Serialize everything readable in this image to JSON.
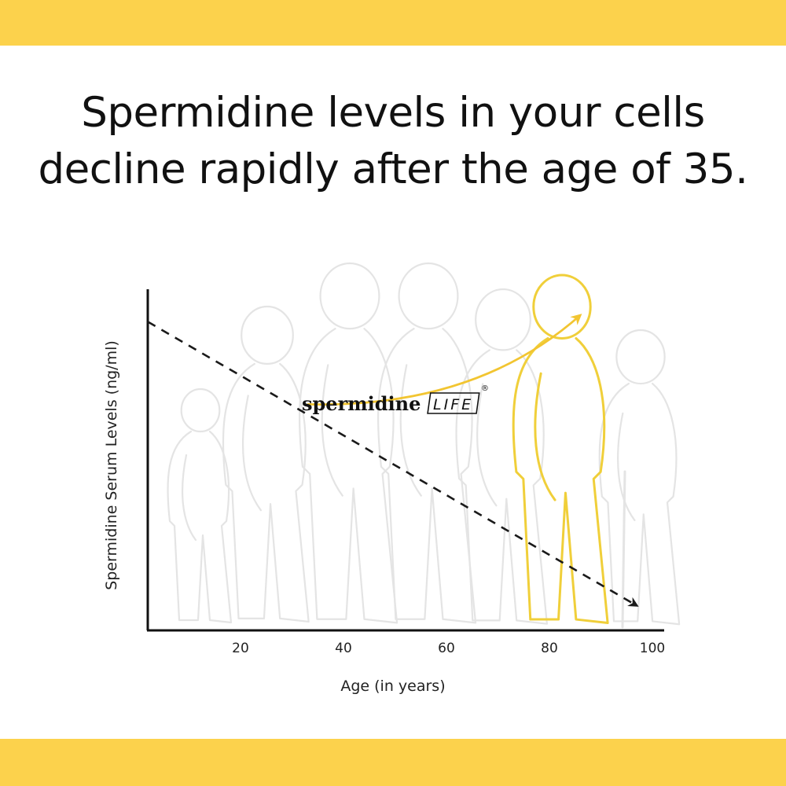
{
  "headline": {
    "line1": "Spermidine levels in your cells",
    "line2": "decline rapidly after the age of 35."
  },
  "colors": {
    "band": "#fcd24c",
    "accent_arrow": "#f2c531",
    "trend": "#1a1a1a",
    "silhouette_faded": "#e4e4e4",
    "silhouette_highlight": "#f0cf3a"
  },
  "brand": {
    "word": "spermidine",
    "life": "LIFE",
    "reg": "®"
  },
  "chart_data": {
    "type": "line",
    "xlabel": "Age (in years)",
    "ylabel": "Spermidine Serum Levels (ng/ml)",
    "x_ticks": [
      "20",
      "40",
      "60",
      "80",
      "100"
    ],
    "xlim": [
      0,
      100
    ],
    "ylim": [
      0,
      1
    ],
    "grid": false,
    "series": [
      {
        "style": "dashed",
        "x": [
          2,
          97
        ],
        "y": [
          0.93,
          0.07
        ]
      }
    ],
    "annotations": [
      {
        "kind": "arrow",
        "from_x": 33,
        "from_y": 0.68,
        "to_x": 86,
        "to_y": 0.95,
        "color": "#f2c531"
      }
    ]
  }
}
